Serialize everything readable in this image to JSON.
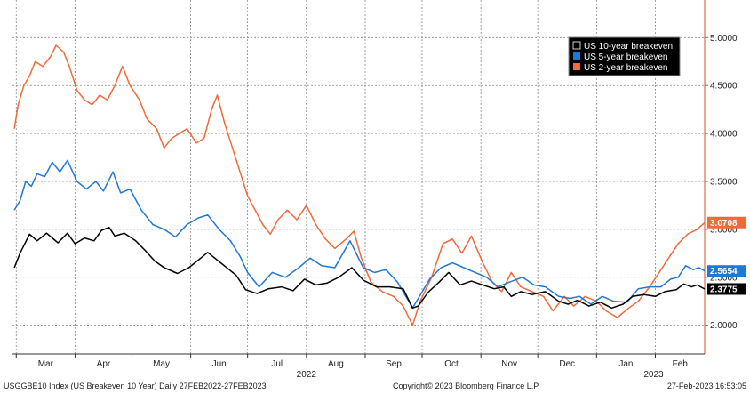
{
  "chart_data": {
    "type": "line",
    "x_start": "2022-02-27",
    "x_end": "2023-02-27",
    "month_labels": [
      "Mar",
      "Apr",
      "May",
      "Jun",
      "Jul",
      "Aug",
      "Sep",
      "Oct",
      "Nov",
      "Dec",
      "Jan",
      "Feb"
    ],
    "year_labels": [
      "2022",
      "2023"
    ],
    "y_ticks": [
      "2.0000",
      "2.5000",
      "3.0000",
      "3.5000",
      "4.0000",
      "4.5000",
      "5.0000"
    ],
    "ylim": [
      1.7,
      5.3
    ],
    "grid": true,
    "legend_placement": "top-right",
    "series": [
      {
        "name": "US 10-year breakeven",
        "color": "#000000",
        "last_value": "2.3775",
        "points": [
          [
            "2022-02-28",
            2.6
          ],
          [
            "2022-03-03",
            2.75
          ],
          [
            "2022-03-08",
            2.95
          ],
          [
            "2022-03-12",
            2.88
          ],
          [
            "2022-03-17",
            2.96
          ],
          [
            "2022-03-23",
            2.86
          ],
          [
            "2022-03-28",
            2.96
          ],
          [
            "2022-04-01",
            2.85
          ],
          [
            "2022-04-06",
            2.91
          ],
          [
            "2022-04-11",
            2.88
          ],
          [
            "2022-04-15",
            2.99
          ],
          [
            "2022-04-19",
            3.02
          ],
          [
            "2022-04-22",
            2.93
          ],
          [
            "2022-04-27",
            2.96
          ],
          [
            "2022-05-03",
            2.88
          ],
          [
            "2022-05-08",
            2.78
          ],
          [
            "2022-05-13",
            2.67
          ],
          [
            "2022-05-18",
            2.6
          ],
          [
            "2022-05-25",
            2.54
          ],
          [
            "2022-05-31",
            2.6
          ],
          [
            "2022-06-05",
            2.68
          ],
          [
            "2022-06-10",
            2.76
          ],
          [
            "2022-06-15",
            2.68
          ],
          [
            "2022-06-20",
            2.6
          ],
          [
            "2022-06-25",
            2.52
          ],
          [
            "2022-06-30",
            2.37
          ],
          [
            "2022-07-06",
            2.33
          ],
          [
            "2022-07-12",
            2.38
          ],
          [
            "2022-07-19",
            2.4
          ],
          [
            "2022-07-25",
            2.36
          ],
          [
            "2022-07-31",
            2.48
          ],
          [
            "2022-08-06",
            2.42
          ],
          [
            "2022-08-12",
            2.44
          ],
          [
            "2022-08-18",
            2.5
          ],
          [
            "2022-08-25",
            2.6
          ],
          [
            "2022-08-31",
            2.47
          ],
          [
            "2022-09-07",
            2.4
          ],
          [
            "2022-09-14",
            2.4
          ],
          [
            "2022-09-21",
            2.38
          ],
          [
            "2022-09-26",
            2.18
          ],
          [
            "2022-09-29",
            2.2
          ],
          [
            "2022-10-04",
            2.34
          ],
          [
            "2022-10-10",
            2.45
          ],
          [
            "2022-10-15",
            2.55
          ],
          [
            "2022-10-21",
            2.42
          ],
          [
            "2022-10-27",
            2.46
          ],
          [
            "2022-11-02",
            2.42
          ],
          [
            "2022-11-08",
            2.38
          ],
          [
            "2022-11-13",
            2.4
          ],
          [
            "2022-11-17",
            2.3
          ],
          [
            "2022-11-22",
            2.35
          ],
          [
            "2022-11-28",
            2.32
          ],
          [
            "2022-12-05",
            2.35
          ],
          [
            "2022-12-12",
            2.25
          ],
          [
            "2022-12-17",
            2.22
          ],
          [
            "2022-12-22",
            2.26
          ],
          [
            "2022-12-28",
            2.2
          ],
          [
            "2023-01-03",
            2.24
          ],
          [
            "2023-01-09",
            2.18
          ],
          [
            "2023-01-15",
            2.22
          ],
          [
            "2023-01-20",
            2.3
          ],
          [
            "2023-01-26",
            2.32
          ],
          [
            "2023-02-01",
            2.3
          ],
          [
            "2023-02-06",
            2.35
          ],
          [
            "2023-02-12",
            2.37
          ],
          [
            "2023-02-16",
            2.43
          ],
          [
            "2023-02-20",
            2.4
          ],
          [
            "2023-02-23",
            2.42
          ],
          [
            "2023-02-27",
            2.3775
          ]
        ]
      },
      {
        "name": "US 5-year breakeven",
        "color": "#1f78d1",
        "last_value": "2.5654",
        "points": [
          [
            "2022-02-28",
            3.2
          ],
          [
            "2022-03-03",
            3.3
          ],
          [
            "2022-03-06",
            3.5
          ],
          [
            "2022-03-09",
            3.45
          ],
          [
            "2022-03-12",
            3.58
          ],
          [
            "2022-03-16",
            3.55
          ],
          [
            "2022-03-20",
            3.7
          ],
          [
            "2022-03-24",
            3.6
          ],
          [
            "2022-03-28",
            3.72
          ],
          [
            "2022-04-02",
            3.5
          ],
          [
            "2022-04-07",
            3.42
          ],
          [
            "2022-04-12",
            3.5
          ],
          [
            "2022-04-16",
            3.4
          ],
          [
            "2022-04-21",
            3.6
          ],
          [
            "2022-04-25",
            3.38
          ],
          [
            "2022-04-30",
            3.42
          ],
          [
            "2022-05-06",
            3.2
          ],
          [
            "2022-05-12",
            3.05
          ],
          [
            "2022-05-18",
            3.0
          ],
          [
            "2022-05-24",
            2.92
          ],
          [
            "2022-05-30",
            3.05
          ],
          [
            "2022-06-05",
            3.12
          ],
          [
            "2022-06-10",
            3.15
          ],
          [
            "2022-06-16",
            3.0
          ],
          [
            "2022-06-22",
            2.88
          ],
          [
            "2022-06-27",
            2.72
          ],
          [
            "2022-07-01",
            2.55
          ],
          [
            "2022-07-07",
            2.4
          ],
          [
            "2022-07-14",
            2.55
          ],
          [
            "2022-07-21",
            2.5
          ],
          [
            "2022-07-28",
            2.6
          ],
          [
            "2022-08-03",
            2.7
          ],
          [
            "2022-08-09",
            2.62
          ],
          [
            "2022-08-16",
            2.6
          ],
          [
            "2022-08-24",
            2.88
          ],
          [
            "2022-08-31",
            2.6
          ],
          [
            "2022-09-06",
            2.55
          ],
          [
            "2022-09-12",
            2.58
          ],
          [
            "2022-09-18",
            2.45
          ],
          [
            "2022-09-26",
            2.18
          ],
          [
            "2022-09-29",
            2.28
          ],
          [
            "2022-10-05",
            2.48
          ],
          [
            "2022-10-11",
            2.6
          ],
          [
            "2022-10-17",
            2.65
          ],
          [
            "2022-10-23",
            2.6
          ],
          [
            "2022-10-29",
            2.55
          ],
          [
            "2022-11-04",
            2.5
          ],
          [
            "2022-11-10",
            2.4
          ],
          [
            "2022-11-16",
            2.45
          ],
          [
            "2022-11-23",
            2.5
          ],
          [
            "2022-11-29",
            2.42
          ],
          [
            "2022-12-05",
            2.4
          ],
          [
            "2022-12-12",
            2.3
          ],
          [
            "2022-12-18",
            2.28
          ],
          [
            "2022-12-23",
            2.3
          ],
          [
            "2022-12-29",
            2.22
          ],
          [
            "2023-01-04",
            2.3
          ],
          [
            "2023-01-10",
            2.25
          ],
          [
            "2023-01-17",
            2.24
          ],
          [
            "2023-01-23",
            2.38
          ],
          [
            "2023-01-29",
            2.4
          ],
          [
            "2023-02-04",
            2.4
          ],
          [
            "2023-02-09",
            2.48
          ],
          [
            "2023-02-13",
            2.5
          ],
          [
            "2023-02-17",
            2.62
          ],
          [
            "2023-02-21",
            2.58
          ],
          [
            "2023-02-24",
            2.6
          ],
          [
            "2023-02-27",
            2.5654
          ]
        ]
      },
      {
        "name": "US 2-year breakeven",
        "color": "#f06a3a",
        "last_value": "3.0708",
        "points": [
          [
            "2022-02-28",
            4.05
          ],
          [
            "2022-03-02",
            4.3
          ],
          [
            "2022-03-05",
            4.5
          ],
          [
            "2022-03-08",
            4.6
          ],
          [
            "2022-03-11",
            4.75
          ],
          [
            "2022-03-15",
            4.7
          ],
          [
            "2022-03-19",
            4.8
          ],
          [
            "2022-03-22",
            4.92
          ],
          [
            "2022-03-26",
            4.85
          ],
          [
            "2022-03-29",
            4.7
          ],
          [
            "2022-04-02",
            4.45
          ],
          [
            "2022-04-06",
            4.35
          ],
          [
            "2022-04-10",
            4.3
          ],
          [
            "2022-04-14",
            4.4
          ],
          [
            "2022-04-18",
            4.35
          ],
          [
            "2022-04-22",
            4.5
          ],
          [
            "2022-04-26",
            4.7
          ],
          [
            "2022-04-30",
            4.5
          ],
          [
            "2022-05-05",
            4.35
          ],
          [
            "2022-05-09",
            4.15
          ],
          [
            "2022-05-14",
            4.05
          ],
          [
            "2022-05-18",
            3.85
          ],
          [
            "2022-05-22",
            3.95
          ],
          [
            "2022-05-26",
            4.0
          ],
          [
            "2022-05-30",
            4.05
          ],
          [
            "2022-06-04",
            3.9
          ],
          [
            "2022-06-08",
            3.95
          ],
          [
            "2022-06-12",
            4.25
          ],
          [
            "2022-06-15",
            4.4
          ],
          [
            "2022-06-19",
            4.1
          ],
          [
            "2022-06-23",
            3.85
          ],
          [
            "2022-06-27",
            3.6
          ],
          [
            "2022-07-01",
            3.35
          ],
          [
            "2022-07-05",
            3.2
          ],
          [
            "2022-07-09",
            3.05
          ],
          [
            "2022-07-13",
            2.95
          ],
          [
            "2022-07-17",
            3.1
          ],
          [
            "2022-07-22",
            3.2
          ],
          [
            "2022-07-27",
            3.1
          ],
          [
            "2022-08-01",
            3.25
          ],
          [
            "2022-08-06",
            3.05
          ],
          [
            "2022-08-11",
            2.9
          ],
          [
            "2022-08-16",
            2.8
          ],
          [
            "2022-08-22",
            2.9
          ],
          [
            "2022-08-26",
            2.98
          ],
          [
            "2022-08-30",
            2.7
          ],
          [
            "2022-09-04",
            2.45
          ],
          [
            "2022-09-10",
            2.35
          ],
          [
            "2022-09-16",
            2.3
          ],
          [
            "2022-09-21",
            2.2
          ],
          [
            "2022-09-26",
            2.0
          ],
          [
            "2022-09-30",
            2.25
          ],
          [
            "2022-10-06",
            2.5
          ],
          [
            "2022-10-12",
            2.85
          ],
          [
            "2022-10-17",
            2.9
          ],
          [
            "2022-10-22",
            2.75
          ],
          [
            "2022-10-27",
            2.93
          ],
          [
            "2022-11-02",
            2.65
          ],
          [
            "2022-11-07",
            2.45
          ],
          [
            "2022-11-12",
            2.35
          ],
          [
            "2022-11-17",
            2.55
          ],
          [
            "2022-11-22",
            2.4
          ],
          [
            "2022-11-28",
            2.35
          ],
          [
            "2022-12-04",
            2.3
          ],
          [
            "2022-12-09",
            2.15
          ],
          [
            "2022-12-15",
            2.3
          ],
          [
            "2022-12-20",
            2.2
          ],
          [
            "2022-12-26",
            2.3
          ],
          [
            "2023-01-01",
            2.25
          ],
          [
            "2023-01-06",
            2.15
          ],
          [
            "2023-01-12",
            2.08
          ],
          [
            "2023-01-18",
            2.18
          ],
          [
            "2023-01-23",
            2.25
          ],
          [
            "2023-01-29",
            2.4
          ],
          [
            "2023-02-03",
            2.55
          ],
          [
            "2023-02-08",
            2.7
          ],
          [
            "2023-02-13",
            2.85
          ],
          [
            "2023-02-18",
            2.95
          ],
          [
            "2023-02-23",
            3.0
          ],
          [
            "2023-02-27",
            3.0708
          ]
        ]
      }
    ]
  },
  "footer": {
    "left": "USGGBE10 Index (US Breakeven 10 Year)  Daily 27FEB2022-27FEB2023",
    "center": "Copyright© 2023 Bloomberg Finance L.P.",
    "right": "27-Feb-2023 16:53:05"
  }
}
